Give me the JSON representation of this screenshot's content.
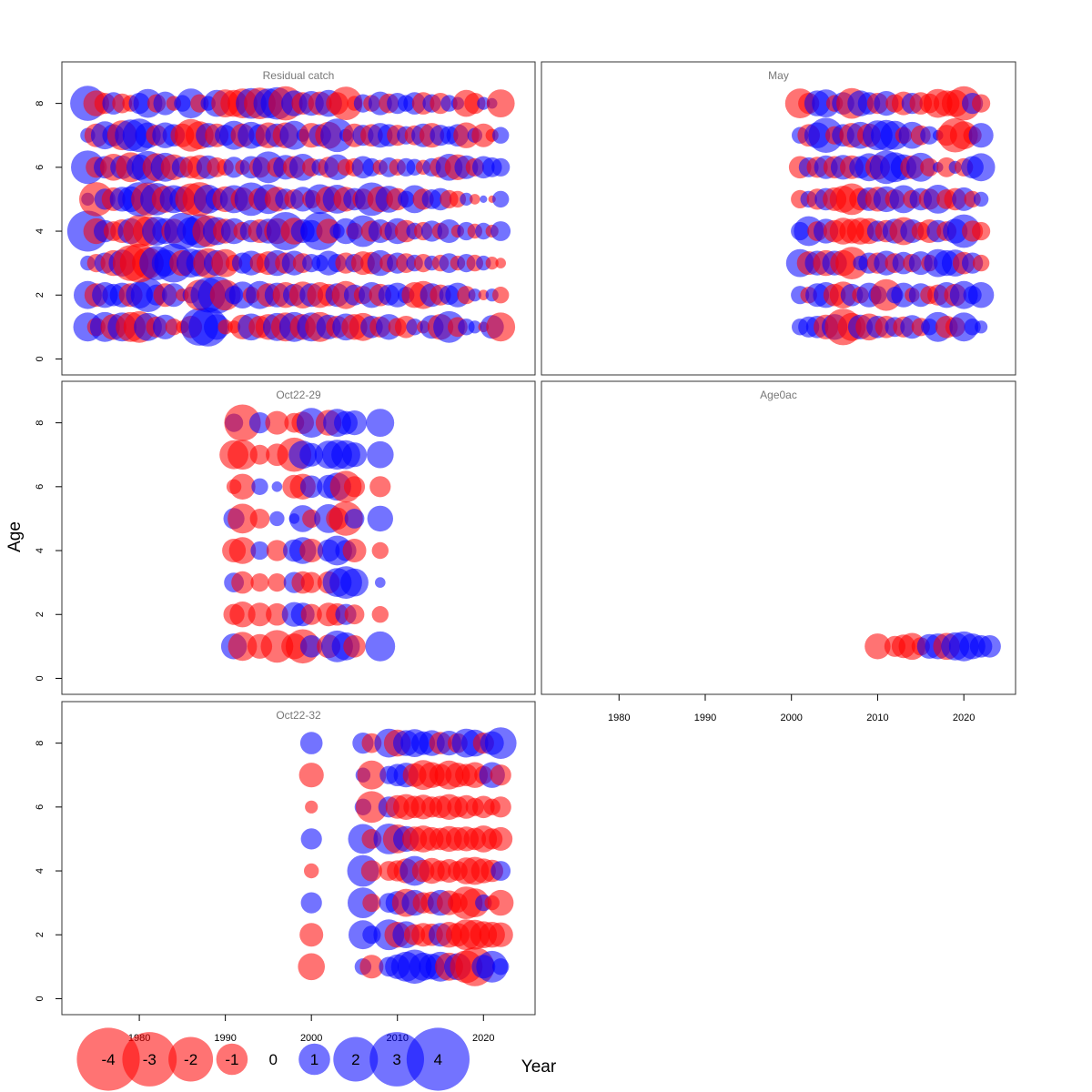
{
  "chart_data": {
    "type": "scatter",
    "subtype": "bubble",
    "xlabel": "Year",
    "ylabel": "Age",
    "xlim": [
      1971,
      2026
    ],
    "ylim": [
      -0.5,
      9.3
    ],
    "x_ticks": [
      1980,
      1990,
      2000,
      2010,
      2020
    ],
    "y_ticks": [
      0,
      2,
      4,
      6,
      8
    ],
    "colors": {
      "positive": "#0000ff",
      "negative": "#ff0000",
      "opacity": 0.55
    },
    "legend": {
      "placement": "bottom-left",
      "values": [
        -4,
        -3,
        -2,
        -1,
        0,
        1,
        2,
        3,
        4
      ],
      "labels": [
        "-4",
        "-3",
        "-2",
        "-1",
        "0",
        "1",
        "2",
        "3",
        "4"
      ]
    },
    "panels": [
      {
        "title": "Residual catch",
        "ages": [
          1,
          2,
          3,
          4,
          5,
          6,
          7,
          8
        ],
        "years": [
          1974,
          1975,
          1976,
          1977,
          1978,
          1979,
          1980,
          1981,
          1982,
          1983,
          1984,
          1985,
          1986,
          1987,
          1988,
          1989,
          1990,
          1991,
          1992,
          1993,
          1994,
          1995,
          1996,
          1997,
          1998,
          1999,
          2000,
          2001,
          2002,
          2003,
          2004,
          2005,
          2006,
          2007,
          2008,
          2009,
          2010,
          2011,
          2012,
          2013,
          2014,
          2015,
          2016,
          2017,
          2018,
          2019,
          2020,
          2021,
          2022
        ],
        "residuals": [
          [
            1.5,
            -0.6,
            1.6,
            -1.2,
            1.5,
            -1.6,
            -1.8,
            1.4,
            -0.8,
            1.1,
            -0.5,
            -0.3,
            -0.9,
            2.5,
            2.7,
            1.2,
            -0.4,
            -0.3,
            -1.1,
            1.3,
            -0.9,
            -1.2,
            1.4,
            -1.5,
            1.6,
            -1.2,
            1.5,
            -1.6,
            1.1,
            -0.9,
            1.3,
            -1.2,
            -1.4,
            0.9,
            -0.8,
            1.2,
            -0.6,
            -0.9,
            0.5,
            -0.3,
            1.0,
            -1.2,
            1.8,
            -0.7,
            0.5,
            0.3,
            -0.2,
            1.0,
            -1.5
          ],
          [
            1.4,
            -1.0,
            1.2,
            0.9,
            1.1,
            -1.0,
            1.3,
            2.1,
            0.8,
            -1.0,
            1.0,
            -0.3,
            0.5,
            -1.7,
            2.2,
            2.5,
            -1.7,
            0.6,
            1.3,
            -0.5,
            1.4,
            -1.0,
            1.1,
            -1.2,
            0.9,
            -1.3,
            1.0,
            -1.2,
            -0.9,
            1.0,
            -1.4,
            0.8,
            -0.6,
            1.2,
            -0.9,
            0.8,
            1.1,
            0.5,
            -1.2,
            -1.4,
            1.0,
            -0.8,
            0.7,
            1.1,
            -0.6,
            0.3,
            -0.2,
            0.3,
            -0.5
          ],
          [
            0.4,
            -0.6,
            0.8,
            -1.2,
            1.3,
            -2.3,
            -2.7,
            -1.8,
            2.1,
            1.3,
            2.7,
            -1.2,
            1.5,
            1.3,
            -1.6,
            1.2,
            -1.4,
            -0.5,
            0.8,
            1.1,
            -0.7,
            -1.0,
            1.2,
            -0.8,
            1.1,
            -0.7,
            0.6,
            0.5,
            1.1,
            0.6,
            -0.8,
            0.6,
            -1.0,
            -0.9,
            1.2,
            -0.6,
            0.8,
            -0.7,
            0.5,
            -0.6,
            0.4,
            -0.5,
            0.7,
            -0.4,
            0.6,
            -0.5,
            0.4,
            -0.3,
            -0.2
          ],
          [
            3.0,
            -1.2,
            0.9,
            -0.7,
            -1.0,
            1.2,
            -1.9,
            -1.6,
            1.5,
            1.2,
            -1.1,
            2.4,
            1.4,
            2.1,
            -1.8,
            1.4,
            -1.1,
            1.2,
            -0.6,
            0.9,
            -1.0,
            1.1,
            -1.2,
            2.6,
            -1.3,
            1.0,
            0.9,
            2.6,
            -1.1,
            0.4,
            1.2,
            -0.5,
            1.8,
            -0.8,
            1.0,
            -0.6,
            1.2,
            -0.9,
            0.5,
            -0.6,
            0.8,
            -0.5,
            1.0,
            -0.3,
            0.6,
            -0.4,
            0.5,
            -0.3,
            0.7
          ],
          [
            0.3,
            -2.1,
            0.8,
            -1.0,
            1.1,
            1.2,
            2.1,
            -2.0,
            1.9,
            -1.3,
            1.4,
            1.2,
            -1.8,
            -2.1,
            1.5,
            0.9,
            -1.2,
            1.4,
            -1.0,
            2.0,
            -0.9,
            1.6,
            -1.1,
            0.8,
            -0.7,
            1.1,
            -0.6,
            1.6,
            -1.2,
            1.5,
            -1.1,
            0.9,
            -0.8,
            2.0,
            -1.2,
            1.3,
            -0.9,
            0.5,
            1.4,
            -0.8,
            0.7,
            0.9,
            -0.6,
            -0.5,
            0.3,
            -0.2,
            0.1,
            -0.1,
            0.5
          ],
          [
            2.0,
            -0.8,
            0.9,
            -1.3,
            1.0,
            -1.6,
            1.2,
            1.9,
            -1.4,
            1.5,
            -1.2,
            0.8,
            -0.9,
            -1.1,
            1.0,
            -0.7,
            -0.5,
            0.8,
            -0.4,
            0.9,
            -0.8,
            1.8,
            -0.7,
            1.1,
            -0.9,
            1.3,
            -0.6,
            0.5,
            -0.8,
            1.2,
            -0.5,
            -0.6,
            0.9,
            0.6,
            -0.4,
            0.7,
            -0.5,
            0.6,
            0.5,
            -0.4,
            0.6,
            -0.8,
            1.3,
            -1.2,
            1.0,
            -0.6,
            0.9,
            0.7,
            0.6
          ],
          [
            0.4,
            -1.0,
            1.4,
            0.9,
            -1.6,
            1.8,
            2.0,
            1.2,
            -0.8,
            1.2,
            0.9,
            -1.0,
            -1.9,
            -1.4,
            1.1,
            -1.0,
            0.8,
            1.5,
            -1.0,
            1.3,
            0.9,
            -1.2,
            1.0,
            -1.2,
            1.5,
            0.3,
            -1.1,
            0.9,
            -1.3,
            2.0,
            0.3,
            -1.0,
            0.8,
            -0.9,
            1.1,
            0.9,
            -0.8,
            0.6,
            -0.7,
            1.0,
            -1.1,
            0.8,
            0.6,
            0.9,
            -1.2,
            0.4,
            -1.0,
            -0.3,
            0.5
          ],
          [
            2.2,
            -1.2,
            -0.8,
            0.9,
            -0.7,
            -0.5,
            0.8,
            1.5,
            -0.6,
            1.0,
            -0.4,
            0.5,
            1.6,
            -0.6,
            0.4,
            1.3,
            -1.4,
            -1.3,
            -1.6,
            1.7,
            -1.8,
            1.6,
            1.9,
            -2.1,
            1.2,
            -0.9,
            1.1,
            -1.0,
            1.3,
            -0.9,
            -2.0,
            -0.4,
            0.6,
            -0.5,
            1.0,
            -0.7,
            0.8,
            0.5,
            0.9,
            -0.9,
            0.6,
            -0.8,
            0.5,
            0.3,
            -1.3,
            -0.8,
            0.3,
            0.2,
            -1.4
          ]
        ]
      },
      {
        "title": "May",
        "ages": [
          1,
          2,
          3,
          4,
          5,
          6,
          7,
          8
        ],
        "years": [
          2001,
          2002,
          2003,
          2004,
          2005,
          2006,
          2007,
          2008,
          2009,
          2010,
          2011,
          2012,
          2013,
          2014,
          2015,
          2016,
          2017,
          2018,
          2019,
          2020,
          2021,
          2022
        ],
        "residuals": [
          [
            0.5,
            0.8,
            0.9,
            -1.1,
            1.2,
            -2.4,
            -1.4,
            1.1,
            -1.3,
            0.9,
            -0.9,
            0.7,
            -0.8,
            1.0,
            -0.6,
            0.5,
            1.6,
            -0.9,
            -0.7,
            1.5,
            0.5,
            0.3
          ],
          [
            0.6,
            -0.5,
            1.0,
            1.2,
            -0.9,
            -1.3,
            0.9,
            -0.5,
            1.1,
            0.6,
            -1.8,
            0.5,
            1.1,
            -0.4,
            1.0,
            -0.6,
            -0.8,
            1.2,
            -0.9,
            1.4,
            0.6,
            1.2
          ],
          [
            1.4,
            -1.0,
            1.1,
            -1.2,
            1.1,
            -1.2,
            -1.9,
            0.4,
            0.8,
            -0.8,
            1.1,
            -0.7,
            0.9,
            -0.6,
            1.0,
            -0.5,
            1.4,
            1.2,
            1.3,
            -0.9,
            0.8,
            -0.5
          ],
          [
            0.6,
            1.6,
            -0.7,
            1.1,
            -0.9,
            -1.3,
            -1.1,
            -1.3,
            -1.2,
            0.8,
            -0.9,
            1.1,
            -1.4,
            1.0,
            -0.6,
            -1.0,
            0.9,
            -0.7,
            1.1,
            2.0,
            -0.8,
            -0.6
          ],
          [
            -0.6,
            0.5,
            -0.8,
            0.9,
            -1.0,
            -1.3,
            -1.8,
            -0.9,
            1.0,
            -1.1,
            1.2,
            -0.7,
            1.4,
            -0.6,
            0.9,
            -0.8,
            1.5,
            -0.7,
            -0.9,
            1.0,
            -0.5,
            0.4
          ],
          [
            -0.9,
            0.7,
            -0.8,
            1.0,
            -0.9,
            1.1,
            -1.0,
            0.9,
            1.4,
            -1.1,
            2.0,
            1.6,
            1.2,
            -1.0,
            1.5,
            -0.6,
            0.2,
            -0.7,
            0.3,
            -0.6,
            0.9,
            1.4
          ],
          [
            0.5,
            -0.9,
            1.2,
            2.2,
            -0.6,
            0.9,
            -1.1,
            1.3,
            -1.0,
            1.6,
            1.7,
            1.5,
            -0.5,
            1.3,
            -0.7,
            0.6,
            0.2,
            -0.8,
            -2.1,
            -1.4,
            -0.6,
            1.1
          ],
          [
            -1.6,
            -0.8,
            1.2,
            1.4,
            -0.5,
            0.9,
            -1.7,
            1.2,
            0.9,
            -0.8,
            1.1,
            -0.6,
            -1.0,
            0.8,
            -0.9,
            -0.7,
            -1.5,
            -1.2,
            -1.3,
            -2.1,
            0.8,
            -0.6
          ]
        ]
      },
      {
        "title": "Oct22-29",
        "ages": [
          1,
          2,
          3,
          4,
          5,
          6,
          7,
          8
        ],
        "years": [
          1991,
          1992,
          1994,
          1996,
          1998,
          1999,
          2000,
          2002,
          2003,
          2004,
          2005,
          2008
        ],
        "residuals": [
          [
            1.2,
            -1.5,
            -1.1,
            -1.9,
            -1.2,
            -2.1,
            0.9,
            -1.0,
            1.8,
            1.4,
            -0.9,
            1.6
          ],
          [
            -0.8,
            -1.2,
            -1.0,
            -0.9,
            1.1,
            1.0,
            -0.8,
            -1.0,
            -0.9,
            0.8,
            -0.7,
            -0.5
          ],
          [
            0.7,
            -0.9,
            -0.6,
            -0.6,
            0.8,
            -0.9,
            -0.8,
            -0.9,
            1.5,
            1.9,
            1.4,
            0.2
          ],
          [
            -1.0,
            -1.3,
            0.6,
            -0.8,
            0.9,
            1.3,
            -1.0,
            0.9,
            1.6,
            0.8,
            -1.0,
            -0.5
          ],
          [
            0.8,
            -1.6,
            -0.7,
            0.4,
            0.2,
            1.3,
            -0.6,
            1.5,
            -0.9,
            -2.1,
            0.7,
            1.2
          ],
          [
            -0.4,
            -1.2,
            0.5,
            0.2,
            -1.0,
            -1.2,
            0.9,
            1.0,
            1.4,
            -1.8,
            -0.8,
            -0.8
          ],
          [
            -1.5,
            -1.6,
            -0.7,
            -0.9,
            -2.1,
            1.4,
            1.0,
            1.4,
            1.6,
            1.5,
            1.1,
            1.3
          ],
          [
            0.6,
            -2.4,
            0.8,
            -1.0,
            -0.7,
            -0.9,
            1.6,
            -1.2,
            1.4,
            1.0,
            1.1,
            1.4
          ]
        ]
      },
      {
        "title": "Age0ac",
        "ages": [
          1
        ],
        "years": [
          2010,
          2012,
          2013,
          2014,
          2015,
          2016,
          2017,
          2018,
          2019,
          2020,
          2021,
          2022,
          2023
        ],
        "residuals": [
          [
            -1.2,
            -0.8,
            -1.0,
            -1.3,
            -0.6,
            1.1,
            1.2,
            -1.3,
            1.4,
            1.6,
            1.2,
            0.9,
            0.9
          ]
        ]
      },
      {
        "title": "Oct22-32",
        "ages": [
          1,
          2,
          3,
          4,
          5,
          6,
          7,
          8
        ],
        "years": [
          2000,
          2006,
          2007,
          2009,
          2010,
          2011,
          2012,
          2013,
          2014,
          2015,
          2016,
          2017,
          2018,
          2019,
          2020,
          2021,
          2022
        ],
        "residuals": [
          [
            -1.3,
            0.5,
            -1.0,
            0.7,
            1.1,
            1.6,
            2.1,
            1.4,
            1.2,
            1.6,
            -1.4,
            1.3,
            -1.9,
            -2.7,
            1.0,
            1.8,
            0.5
          ],
          [
            -1.0,
            1.5,
            0.6,
            1.7,
            -1.2,
            1.3,
            -0.8,
            -1.0,
            -0.9,
            1.0,
            -1.2,
            -1.0,
            -1.7,
            -1.6,
            -1.3,
            -1.2,
            -1.1
          ],
          [
            0.8,
            1.7,
            -0.6,
            0.7,
            1.0,
            -1.4,
            1.2,
            -0.8,
            -0.9,
            1.2,
            -1.1,
            -0.7,
            -1.9,
            -1.5,
            0.5,
            -0.4,
            -1.2
          ],
          [
            -0.4,
            1.8,
            -0.8,
            -0.7,
            -0.8,
            -1.1,
            1.6,
            -0.9,
            -1.2,
            -0.8,
            -1.0,
            -0.7,
            -1.3,
            -1.4,
            -1.1,
            -0.9,
            0.7
          ],
          [
            0.8,
            1.6,
            -0.7,
            1.7,
            -1.5,
            1.2,
            -1.1,
            -1.3,
            -1.0,
            -0.9,
            -1.2,
            -1.0,
            -1.1,
            -0.9,
            -1.3,
            -0.8,
            -1.0
          ],
          [
            -0.3,
            0.5,
            -1.8,
            0.8,
            -1.0,
            -1.2,
            -0.9,
            -1.1,
            -0.8,
            -0.9,
            -1.2,
            -0.8,
            -1.0,
            -0.6,
            -0.9,
            -0.5,
            -0.8
          ],
          [
            -1.1,
            0.4,
            -1.5,
            0.6,
            0.9,
            1.1,
            -1.0,
            -1.6,
            -1.2,
            -0.9,
            -1.5,
            -1.1,
            -0.9,
            -1.2,
            -0.6,
            1.2,
            -0.8
          ],
          [
            0.9,
            0.8,
            -0.7,
            1.5,
            -1.3,
            1.2,
            1.4,
            1.0,
            1.2,
            -0.9,
            1.1,
            -0.7,
            1.5,
            1.3,
            -0.8,
            1.0,
            1.8
          ]
        ]
      }
    ]
  }
}
